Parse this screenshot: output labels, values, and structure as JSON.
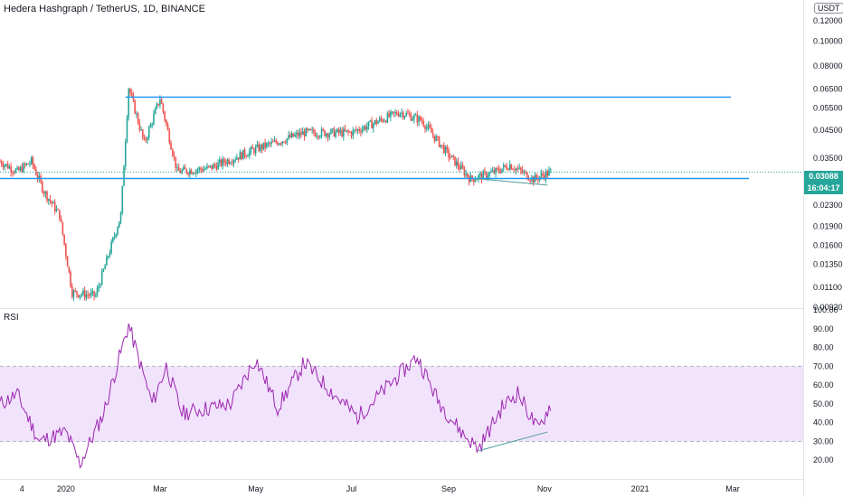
{
  "header": {
    "title": "Hedera Hashgraph / TetherUS, 1D, BINANCE",
    "currency_button": "USDT",
    "last_price": "0.03088",
    "countdown": "16:04:17"
  },
  "rsi_panel": {
    "label": "RSI"
  },
  "colors": {
    "up": "#26a69a",
    "down": "#ef5350",
    "hline": "#2196f3",
    "rsi_line": "#9c27b0",
    "rsi_band": "#efdcfd",
    "trendline": "#4e9b9b",
    "price_dotted": "#26a69a"
  },
  "chart_data": [
    {
      "type": "candlestick",
      "title": "Hedera Hashgraph / TetherUS, 1D, BINANCE",
      "y_scale": "log",
      "y_ticks": [
        "0.12000",
        "0.10000",
        "0.08000",
        "0.06500",
        "0.05500",
        "0.04500",
        "0.03500",
        "0.02300",
        "0.01900",
        "0.01600",
        "0.01350",
        "0.01100",
        "0.00920"
      ],
      "x_ticks": [
        "4",
        "2020",
        "Mar",
        "May",
        "Jul",
        "Sep",
        "Nov",
        "2021",
        "Mar"
      ],
      "ylim": [
        0.0092,
        0.14
      ],
      "approx_close_path": [
        {
          "date": "2019-11-20",
          "price": 0.034
        },
        {
          "date": "2019-12-01",
          "price": 0.031
        },
        {
          "date": "2019-12-10",
          "price": 0.034
        },
        {
          "date": "2019-12-18",
          "price": 0.026
        },
        {
          "date": "2019-12-28",
          "price": 0.021
        },
        {
          "date": "2020-01-05",
          "price": 0.0105
        },
        {
          "date": "2020-01-20",
          "price": 0.0102
        },
        {
          "date": "2020-02-05",
          "price": 0.021
        },
        {
          "date": "2020-02-10",
          "price": 0.066
        },
        {
          "date": "2020-02-20",
          "price": 0.04
        },
        {
          "date": "2020-03-01",
          "price": 0.06
        },
        {
          "date": "2020-03-12",
          "price": 0.031
        },
        {
          "date": "2020-04-01",
          "price": 0.032
        },
        {
          "date": "2020-05-01",
          "price": 0.038
        },
        {
          "date": "2020-06-01",
          "price": 0.044
        },
        {
          "date": "2020-07-01",
          "price": 0.044
        },
        {
          "date": "2020-08-01",
          "price": 0.053
        },
        {
          "date": "2020-08-15",
          "price": 0.049
        },
        {
          "date": "2020-09-01",
          "price": 0.036
        },
        {
          "date": "2020-09-15",
          "price": 0.029
        },
        {
          "date": "2020-10-01",
          "price": 0.031
        },
        {
          "date": "2020-10-10",
          "price": 0.033
        },
        {
          "date": "2020-10-25",
          "price": 0.029
        },
        {
          "date": "2020-11-05",
          "price": 0.0309
        }
      ],
      "horizontal_lines": [
        0.0605,
        0.0292
      ],
      "last_price": 0.03088
    },
    {
      "type": "line",
      "title": "RSI",
      "y_ticks": [
        "100.00",
        "90.00",
        "80.00",
        "70.00",
        "60.00",
        "50.00",
        "40.00",
        "30.00",
        "20.00"
      ],
      "ylim": [
        10,
        100
      ],
      "band": [
        30,
        70
      ],
      "approx_values": [
        {
          "date": "2019-11-20",
          "rsi": 50
        },
        {
          "date": "2019-12-01",
          "rsi": 55
        },
        {
          "date": "2019-12-15",
          "rsi": 30
        },
        {
          "date": "2020-01-01",
          "rsi": 35
        },
        {
          "date": "2020-01-10",
          "rsi": 18
        },
        {
          "date": "2020-01-25",
          "rsi": 45
        },
        {
          "date": "2020-02-10",
          "rsi": 92
        },
        {
          "date": "2020-02-25",
          "rsi": 50
        },
        {
          "date": "2020-03-05",
          "rsi": 70
        },
        {
          "date": "2020-03-15",
          "rsi": 45
        },
        {
          "date": "2020-04-15",
          "rsi": 50
        },
        {
          "date": "2020-05-01",
          "rsi": 74
        },
        {
          "date": "2020-05-15",
          "rsi": 48
        },
        {
          "date": "2020-06-01",
          "rsi": 72
        },
        {
          "date": "2020-06-20",
          "rsi": 55
        },
        {
          "date": "2020-07-05",
          "rsi": 43
        },
        {
          "date": "2020-07-25",
          "rsi": 60
        },
        {
          "date": "2020-08-12",
          "rsi": 75
        },
        {
          "date": "2020-08-25",
          "rsi": 52
        },
        {
          "date": "2020-09-10",
          "rsi": 34
        },
        {
          "date": "2020-09-20",
          "rsi": 26
        },
        {
          "date": "2020-10-05",
          "rsi": 48
        },
        {
          "date": "2020-10-15",
          "rsi": 56
        },
        {
          "date": "2020-10-28",
          "rsi": 36
        },
        {
          "date": "2020-11-05",
          "rsi": 50
        }
      ]
    }
  ]
}
